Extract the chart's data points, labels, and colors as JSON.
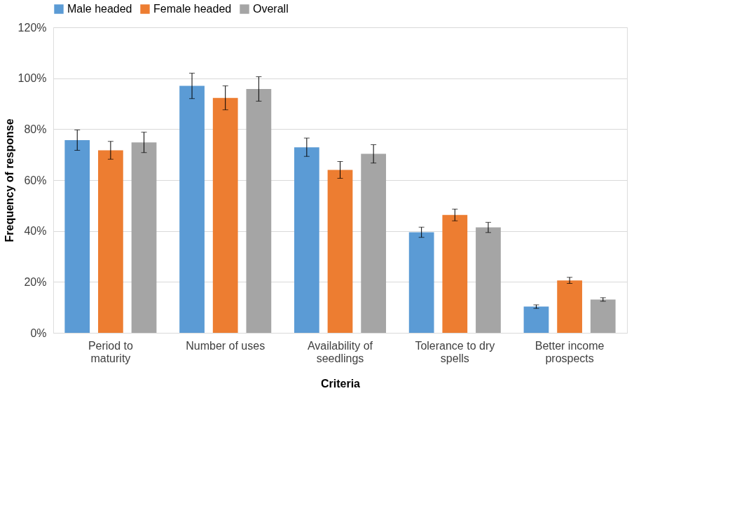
{
  "chart_data": {
    "type": "bar",
    "xlabel": "Criteria",
    "ylabel": "Frequency of response",
    "categories": [
      "Period to maturity",
      "Number of uses",
      "Availability of seedlings",
      "Tolerance to dry spells",
      "Better income prospects"
    ],
    "series": [
      {
        "name": "Male headed",
        "color": "#5b9bd5",
        "values": [
          75.7,
          97,
          72.9,
          39.5,
          10.3
        ],
        "errors": [
          4,
          5,
          3.6,
          2,
          0.7
        ]
      },
      {
        "name": "Female headed",
        "color": "#ed7d31",
        "values": [
          71.7,
          92.3,
          64,
          46.3,
          20.6
        ],
        "errors": [
          3.5,
          4.7,
          3.3,
          2.3,
          1.2
        ]
      },
      {
        "name": "Overall",
        "color": "#a5a5a5",
        "values": [
          74.8,
          95.8,
          70.3,
          41.4,
          13.1
        ],
        "errors": [
          4,
          4.8,
          3.6,
          2,
          0.7
        ]
      }
    ],
    "ylim": [
      0,
      120
    ],
    "yticks": [
      {
        "value": 0,
        "label": "0%"
      },
      {
        "value": 20,
        "label": "20%"
      },
      {
        "value": 40,
        "label": "40%"
      },
      {
        "value": 60,
        "label": "60%"
      },
      {
        "value": 80,
        "label": "80%"
      },
      {
        "value": 100,
        "label": "100%"
      },
      {
        "value": 120,
        "label": "120%"
      }
    ],
    "grid": "y",
    "legend": "top"
  }
}
